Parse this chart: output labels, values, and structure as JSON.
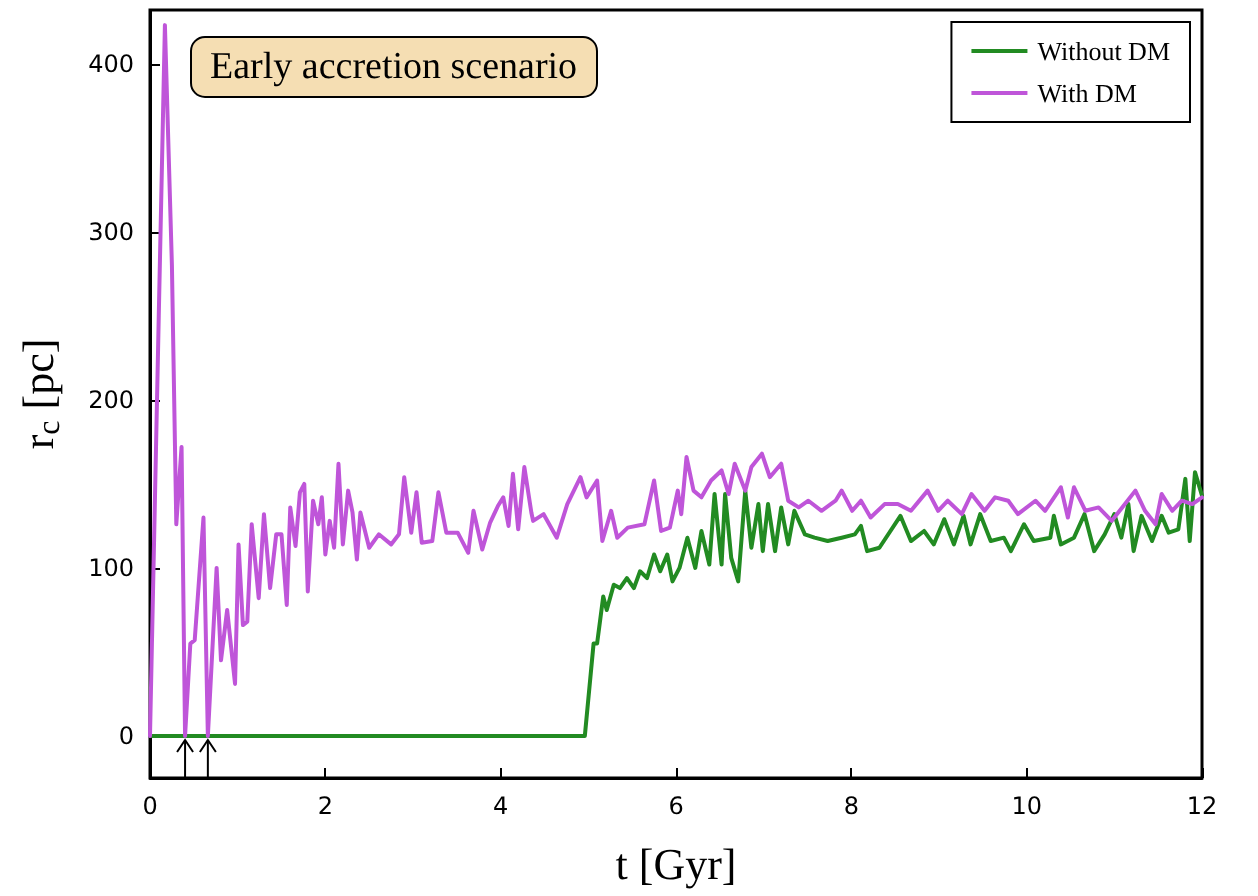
{
  "chart_data": {
    "type": "line",
    "title": "Early accretion scenario",
    "xlabel": "t [Gyr]",
    "ylabel": "r$_{c}$ [pc]",
    "xlim": [
      0,
      12
    ],
    "xticks": [
      0,
      2,
      4,
      6,
      8,
      10,
      12
    ],
    "ylim": [
      -25,
      432
    ],
    "yticks": [
      0,
      100,
      200,
      300,
      400
    ],
    "grid": false,
    "legend": "top right",
    "marker": "none",
    "line_style": "solid",
    "series": [
      {
        "name": "Without DM",
        "color": "#228b22",
        "x": [
          0,
          4.96,
          5.06,
          5.1,
          5.17,
          5.21,
          5.29,
          5.36,
          5.44,
          5.52,
          5.59,
          5.67,
          5.75,
          5.82,
          5.9,
          5.96,
          6.04,
          6.13,
          6.22,
          6.29,
          6.38,
          6.44,
          6.52,
          6.56,
          6.63,
          6.71,
          6.79,
          6.86,
          6.94,
          6.99,
          7.05,
          7.13,
          7.2,
          7.28,
          7.35,
          7.47,
          7.58,
          7.73,
          7.89,
          8.04,
          8.11,
          8.18,
          8.32,
          8.56,
          8.68,
          8.83,
          8.94,
          9.06,
          9.17,
          9.28,
          9.36,
          9.47,
          9.59,
          9.74,
          9.82,
          9.97,
          10.08,
          10.27,
          10.31,
          10.39,
          10.54,
          10.66,
          10.77,
          10.89,
          11.0,
          11.08,
          11.16,
          11.22,
          11.31,
          11.43,
          11.54,
          11.62,
          11.73,
          11.81,
          11.86,
          11.92,
          12.0
        ],
        "values": [
          0,
          0,
          55,
          55,
          83,
          75,
          90,
          88,
          94,
          88,
          98,
          94,
          108,
          98,
          108,
          92,
          100,
          118,
          100,
          122,
          102,
          144,
          102,
          144,
          106,
          92,
          146,
          112,
          138,
          110,
          138,
          110,
          136,
          114,
          134,
          120,
          118,
          116,
          118,
          120,
          125,
          110,
          112,
          131,
          116,
          122,
          114,
          129,
          114,
          131,
          114,
          132,
          116,
          118,
          110,
          126,
          116,
          118,
          131,
          114,
          118,
          132,
          110,
          120,
          132,
          118,
          138,
          110,
          131,
          116,
          131,
          121,
          123,
          153,
          116,
          157,
          143
        ]
      },
      {
        "name": "With DM",
        "color": "#bf55d9",
        "x": [
          0,
          0.1,
          0.17,
          0.25,
          0.3,
          0.36,
          0.4,
          0.46,
          0.51,
          0.61,
          0.66,
          0.76,
          0.81,
          0.88,
          0.97,
          1.01,
          1.06,
          1.11,
          1.16,
          1.24,
          1.3,
          1.37,
          1.44,
          1.5,
          1.56,
          1.6,
          1.66,
          1.71,
          1.76,
          1.8,
          1.86,
          1.92,
          1.96,
          2.0,
          2.05,
          2.1,
          2.15,
          2.2,
          2.26,
          2.31,
          2.36,
          2.4,
          2.5,
          2.61,
          2.75,
          2.84,
          2.9,
          2.98,
          3.04,
          3.1,
          3.22,
          3.29,
          3.38,
          3.51,
          3.63,
          3.69,
          3.79,
          3.88,
          3.97,
          4.03,
          4.09,
          4.14,
          4.2,
          4.27,
          4.35,
          4.37,
          4.49,
          4.64,
          4.76,
          4.91,
          4.98,
          5.1,
          5.16,
          5.26,
          5.33,
          5.45,
          5.64,
          5.75,
          5.83,
          5.93,
          6.02,
          6.06,
          6.12,
          6.2,
          6.29,
          6.4,
          6.52,
          6.6,
          6.67,
          6.79,
          6.86,
          6.98,
          7.07,
          7.2,
          7.28,
          7.4,
          7.51,
          7.66,
          7.82,
          7.89,
          8.01,
          8.11,
          8.22,
          8.38,
          8.53,
          8.68,
          8.87,
          8.99,
          9.1,
          9.26,
          9.37,
          9.52,
          9.64,
          9.79,
          9.9,
          10.1,
          10.21,
          10.39,
          10.47,
          10.54,
          10.67,
          10.82,
          10.97,
          11.09,
          11.24,
          11.35,
          11.47,
          11.54,
          11.66,
          11.77,
          11.89,
          12.0
        ],
        "values": [
          0,
          250,
          423,
          280,
          126,
          172,
          0,
          55,
          57,
          130,
          0,
          100,
          45,
          75,
          31,
          114,
          66,
          68,
          126,
          82,
          132,
          88,
          120,
          120,
          78,
          136,
          113,
          145,
          150,
          86,
          140,
          126,
          142,
          108,
          128,
          112,
          162,
          114,
          146,
          133,
          105,
          133,
          112,
          120,
          114,
          120,
          154,
          121,
          145,
          115,
          116,
          145,
          121,
          121,
          109,
          134,
          111,
          127,
          137,
          142,
          125,
          156,
          123,
          160,
          133,
          128,
          132,
          118,
          138,
          154,
          142,
          152,
          116,
          134,
          118,
          124,
          126,
          152,
          122,
          124,
          146,
          132,
          166,
          146,
          142,
          152,
          158,
          144,
          162,
          146,
          160,
          168,
          154,
          162,
          140,
          136,
          140,
          134,
          140,
          146,
          134,
          140,
          130,
          138,
          138,
          134,
          146,
          134,
          140,
          132,
          144,
          134,
          142,
          140,
          132,
          140,
          134,
          148,
          130,
          148,
          134,
          136,
          128,
          136,
          146,
          134,
          126,
          144,
          134,
          140,
          138,
          142
        ]
      }
    ]
  }
}
